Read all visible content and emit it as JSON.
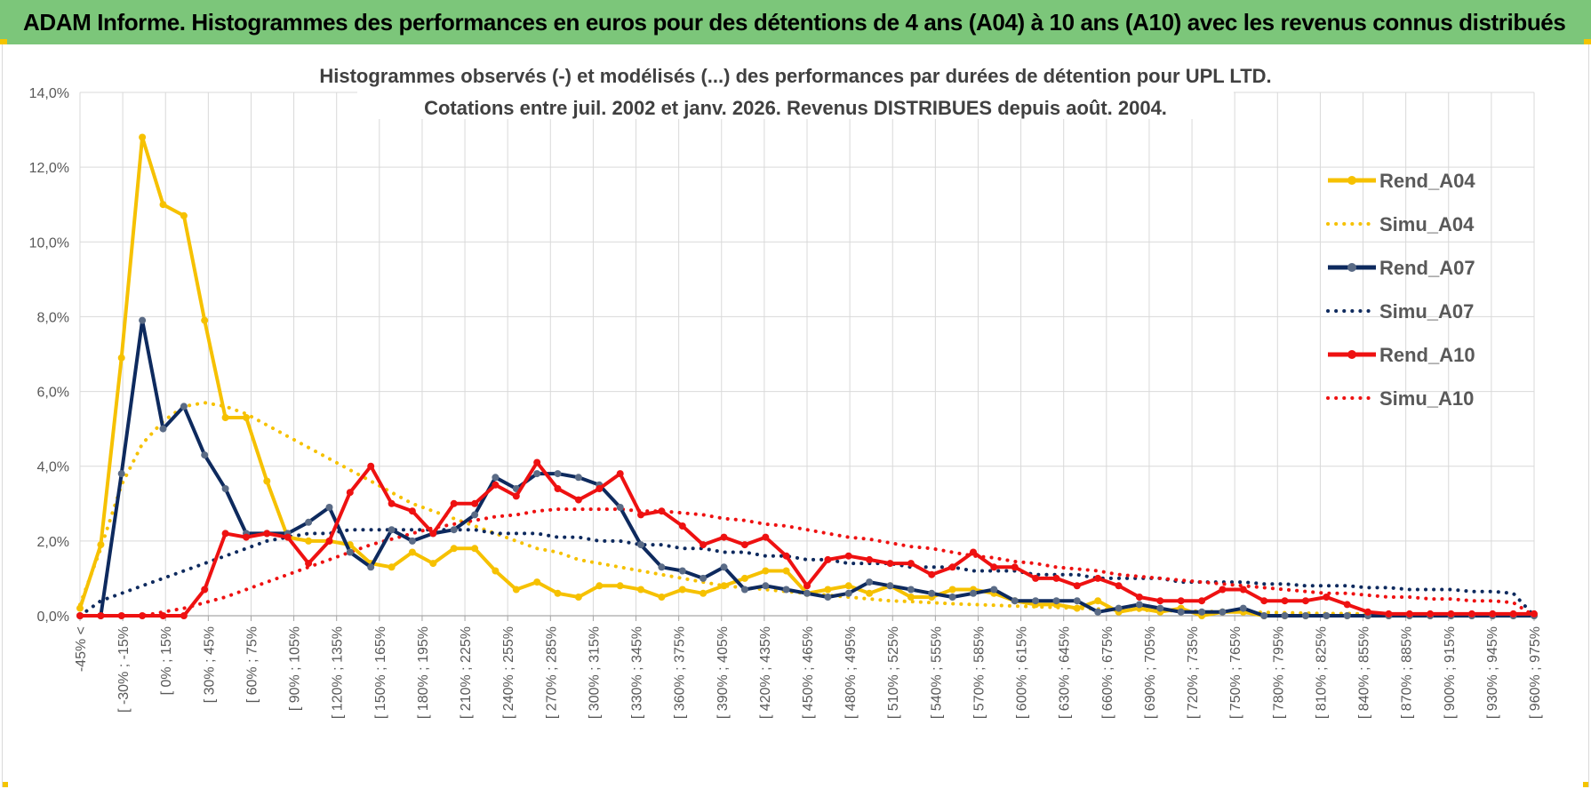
{
  "header": {
    "title": "ADAM Informe. Histogrammes des performances en euros pour des détentions de 4 ans (A04) à 10 ans (A10) avec les revenus connus distribués"
  },
  "colors": {
    "header_bg": "#7cc67a",
    "a04": "#f6c100",
    "a07": "#0e2a5e",
    "a10": "#ee1111",
    "grid": "#d9d9d9",
    "marker_a07": "#5a6b86"
  },
  "chart_data": {
    "type": "line",
    "title": "Histogrammes observés (-) et modélisés (...) des performances par durées de détention pour UPL LTD.",
    "subtitle": "Cotations entre juil. 2002 et janv. 2026. Revenus DISTRIBUES depuis août. 2004.",
    "y_ticks": [
      "0,0%",
      "2,0%",
      "4,0%",
      "6,0%",
      "8,0%",
      "10,0%",
      "12,0%",
      "14,0%"
    ],
    "ylim": [
      0,
      14
    ],
    "x_tick_labels": [
      "-45% <",
      "[ -30% ; -15%",
      "[ 0% ; 15%",
      "[ 30% ; 45%",
      "[ 60% ; 75%",
      "[ 90% ; 105%",
      "[ 120% ; 135%",
      "[ 150% ; 165%",
      "[ 180% ; 195%",
      "[ 210% ; 225%",
      "[ 240% ; 255%",
      "[ 270% ; 285%",
      "[ 300% ; 315%",
      "[ 330% ; 345%",
      "[ 360% ; 375%",
      "[ 390% ; 405%",
      "[ 420% ; 435%",
      "[ 450% ; 465%",
      "[ 480% ; 495%",
      "[ 510% ; 525%",
      "[ 540% ; 555%",
      "[ 570% ; 585%",
      "[ 600% ; 615%",
      "[ 630% ; 645%",
      "[ 660% ; 675%",
      "[ 690% ; 705%",
      "[ 720% ; 735%",
      "[ 750% ; 765%",
      "[ 780% ; 795%",
      "[ 810% ; 825%",
      "[ 840% ; 855%",
      "[ 870% ; 885%",
      "[ 900% ; 915%",
      "[ 930% ; 945%",
      "[ 960% ; 975%"
    ],
    "legend_position": "right",
    "grid": true,
    "series": [
      {
        "name": "Rend_A04",
        "style": "solid",
        "values": [
          0.2,
          1.9,
          6.9,
          12.8,
          11.0,
          10.7,
          7.9,
          5.3,
          5.3,
          3.6,
          2.1,
          2.0,
          2.0,
          1.9,
          1.4,
          1.3,
          1.7,
          1.4,
          1.8,
          1.8,
          1.2,
          0.7,
          0.9,
          0.6,
          0.5,
          0.8,
          0.8,
          0.7,
          0.5,
          0.7,
          0.6,
          0.8,
          1.0,
          1.2,
          1.2,
          0.6,
          0.7,
          0.8,
          0.6,
          0.8,
          0.5,
          0.5,
          0.7,
          0.7,
          0.6,
          0.4,
          0.3,
          0.3,
          0.2,
          0.4,
          0.1,
          0.2,
          0.1,
          0.2,
          0.0,
          0.1,
          0.1,
          0.0,
          0.0,
          0.0,
          0.0,
          0.0,
          0.0,
          0.0,
          0.0,
          0.0,
          0.0,
          0.0,
          0.0,
          0.0,
          0.0
        ]
      },
      {
        "name": "Simu_A04",
        "style": "dotted",
        "values": [
          0.3,
          1.8,
          3.5,
          4.6,
          5.2,
          5.6,
          5.7,
          5.6,
          5.4,
          5.1,
          4.8,
          4.5,
          4.2,
          3.9,
          3.6,
          3.3,
          3.0,
          2.8,
          2.6,
          2.4,
          2.2,
          2.0,
          1.8,
          1.7,
          1.5,
          1.4,
          1.3,
          1.2,
          1.1,
          1.0,
          0.9,
          0.8,
          0.75,
          0.7,
          0.65,
          0.6,
          0.55,
          0.5,
          0.45,
          0.4,
          0.38,
          0.35,
          0.32,
          0.3,
          0.28,
          0.26,
          0.24,
          0.22,
          0.2,
          0.18,
          0.16,
          0.15,
          0.14,
          0.13,
          0.12,
          0.11,
          0.1,
          0.09,
          0.08,
          0.07,
          0.06,
          0.06,
          0.05,
          0.05,
          0.04,
          0.04,
          0.03,
          0.03,
          0.03,
          0.02,
          0.02
        ]
      },
      {
        "name": "Rend_A07",
        "style": "solid",
        "values": [
          0.0,
          0.0,
          3.8,
          7.9,
          5.0,
          5.6,
          4.3,
          3.4,
          2.2,
          2.2,
          2.2,
          2.5,
          2.9,
          1.7,
          1.3,
          2.3,
          2.0,
          2.2,
          2.3,
          2.7,
          3.7,
          3.4,
          3.8,
          3.8,
          3.7,
          3.5,
          2.9,
          1.9,
          1.3,
          1.2,
          1.0,
          1.3,
          0.7,
          0.8,
          0.7,
          0.6,
          0.5,
          0.6,
          0.9,
          0.8,
          0.7,
          0.6,
          0.5,
          0.6,
          0.7,
          0.4,
          0.4,
          0.4,
          0.4,
          0.1,
          0.2,
          0.3,
          0.2,
          0.1,
          0.1,
          0.1,
          0.2,
          0.0,
          0.0,
          0.0,
          0.0,
          0.0,
          0.0,
          0.0,
          0.0,
          0.0,
          0.0,
          0.0,
          0.0,
          0.0,
          0.0
        ]
      },
      {
        "name": "Simu_A07",
        "style": "dotted",
        "values": [
          0.0,
          0.4,
          0.6,
          0.8,
          1.0,
          1.2,
          1.4,
          1.6,
          1.8,
          2.0,
          2.1,
          2.2,
          2.2,
          2.3,
          2.3,
          2.3,
          2.3,
          2.3,
          2.3,
          2.3,
          2.2,
          2.2,
          2.2,
          2.1,
          2.1,
          2.0,
          2.0,
          1.9,
          1.9,
          1.8,
          1.8,
          1.7,
          1.7,
          1.6,
          1.6,
          1.5,
          1.5,
          1.4,
          1.4,
          1.4,
          1.3,
          1.3,
          1.3,
          1.2,
          1.2,
          1.2,
          1.1,
          1.1,
          1.1,
          1.0,
          1.0,
          1.0,
          1.0,
          0.9,
          0.9,
          0.9,
          0.9,
          0.85,
          0.85,
          0.8,
          0.8,
          0.8,
          0.75,
          0.75,
          0.7,
          0.7,
          0.7,
          0.65,
          0.65,
          0.6,
          0.0
        ]
      },
      {
        "name": "Rend_A10",
        "style": "solid",
        "values": [
          0.0,
          0.0,
          0.0,
          0.0,
          0.0,
          0.0,
          0.7,
          2.2,
          2.1,
          2.2,
          2.1,
          1.4,
          2.0,
          3.3,
          4.0,
          3.0,
          2.8,
          2.2,
          3.0,
          3.0,
          3.5,
          3.2,
          4.1,
          3.4,
          3.1,
          3.4,
          3.8,
          2.7,
          2.8,
          2.4,
          1.9,
          2.1,
          1.9,
          2.1,
          1.6,
          0.8,
          1.5,
          1.6,
          1.5,
          1.4,
          1.4,
          1.1,
          1.3,
          1.7,
          1.3,
          1.3,
          1.0,
          1.0,
          0.8,
          1.0,
          0.8,
          0.5,
          0.4,
          0.4,
          0.4,
          0.7,
          0.7,
          0.4,
          0.4,
          0.4,
          0.5,
          0.3,
          0.1,
          0.05,
          0.05,
          0.05,
          0.05,
          0.05,
          0.05,
          0.05,
          0.05
        ]
      },
      {
        "name": "Simu_A10",
        "style": "dotted",
        "values": [
          0.0,
          0.0,
          0.0,
          0.0,
          0.1,
          0.2,
          0.35,
          0.5,
          0.7,
          0.9,
          1.1,
          1.3,
          1.5,
          1.7,
          1.9,
          2.05,
          2.2,
          2.35,
          2.45,
          2.55,
          2.65,
          2.7,
          2.8,
          2.85,
          2.85,
          2.85,
          2.85,
          2.8,
          2.8,
          2.75,
          2.7,
          2.6,
          2.55,
          2.45,
          2.4,
          2.3,
          2.2,
          2.1,
          2.05,
          1.95,
          1.85,
          1.8,
          1.7,
          1.6,
          1.55,
          1.45,
          1.4,
          1.3,
          1.25,
          1.2,
          1.1,
          1.05,
          1.0,
          0.95,
          0.9,
          0.85,
          0.8,
          0.75,
          0.7,
          0.65,
          0.6,
          0.6,
          0.55,
          0.5,
          0.5,
          0.45,
          0.45,
          0.4,
          0.4,
          0.35,
          0.0
        ]
      }
    ]
  }
}
